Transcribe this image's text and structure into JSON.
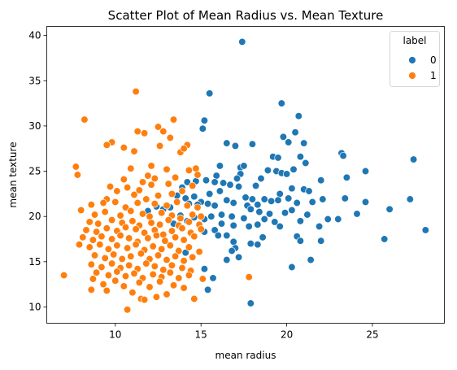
{
  "chart_data": {
    "type": "scatter",
    "title": "Scatter Plot of Mean Radius vs. Mean Texture",
    "xlabel": "mean radius",
    "ylabel": "mean texture",
    "xlim": [
      6.0,
      29.2
    ],
    "ylim": [
      8.2,
      41.0
    ],
    "xticks": [
      10,
      15,
      20,
      25
    ],
    "yticks": [
      10,
      15,
      20,
      25,
      30,
      35,
      40
    ],
    "grid": false,
    "legend": {
      "title": "label",
      "placement": "top-right",
      "entries": [
        {
          "label": "0",
          "color": "#1f77b4"
        },
        {
          "label": "1",
          "color": "#ff7f0e"
        }
      ]
    },
    "series": [
      {
        "label": "0",
        "color": "#1f77b4",
        "points": [
          [
            17.4,
            39.3
          ],
          [
            15.5,
            33.6
          ],
          [
            19.7,
            32.5
          ],
          [
            20.7,
            31.1
          ],
          [
            15.2,
            30.6
          ],
          [
            15.1,
            29.7
          ],
          [
            20.5,
            29.3
          ],
          [
            19.8,
            28.8
          ],
          [
            20.1,
            28.2
          ],
          [
            21.0,
            28.1
          ],
          [
            16.5,
            28.1
          ],
          [
            17.0,
            27.8
          ],
          [
            18.0,
            28.0
          ],
          [
            23.2,
            27.0
          ],
          [
            23.3,
            26.7
          ],
          [
            27.4,
            26.3
          ],
          [
            19.2,
            26.6
          ],
          [
            19.5,
            26.5
          ],
          [
            20.8,
            26.6
          ],
          [
            21.1,
            25.9
          ],
          [
            17.3,
            25.4
          ],
          [
            17.5,
            25.6
          ],
          [
            16.1,
            25.6
          ],
          [
            18.9,
            25.1
          ],
          [
            19.4,
            25.0
          ],
          [
            20.4,
            25.2
          ],
          [
            24.6,
            25.0
          ],
          [
            23.5,
            24.3
          ],
          [
            17.3,
            24.7
          ],
          [
            15.9,
            24.5
          ],
          [
            19.7,
            24.8
          ],
          [
            20.0,
            24.7
          ],
          [
            18.5,
            24.2
          ],
          [
            22.0,
            24.0
          ],
          [
            17.1,
            24.2
          ],
          [
            15.3,
            24.0
          ],
          [
            15.8,
            23.8
          ],
          [
            14.7,
            23.9
          ],
          [
            14.2,
            23.8
          ],
          [
            13.9,
            23.2
          ],
          [
            16.3,
            23.7
          ],
          [
            16.7,
            23.5
          ],
          [
            17.2,
            23.3
          ],
          [
            18.2,
            23.4
          ],
          [
            20.3,
            23.1
          ],
          [
            21.0,
            23.0
          ],
          [
            21.3,
            22.8
          ],
          [
            19.6,
            22.5
          ],
          [
            16.1,
            22.8
          ],
          [
            15.5,
            22.5
          ],
          [
            14.6,
            22.2
          ],
          [
            14.1,
            22.0
          ],
          [
            13.6,
            22.3
          ],
          [
            17.6,
            22.1
          ],
          [
            18.0,
            21.9
          ],
          [
            18.7,
            21.9
          ],
          [
            19.1,
            21.7
          ],
          [
            19.5,
            21.8
          ],
          [
            20.1,
            22.0
          ],
          [
            22.1,
            21.9
          ],
          [
            23.4,
            22.0
          ],
          [
            27.2,
            21.9
          ],
          [
            24.6,
            21.6
          ],
          [
            21.5,
            21.6
          ],
          [
            20.6,
            21.5
          ],
          [
            18.3,
            21.3
          ],
          [
            17.7,
            21.2
          ],
          [
            16.9,
            21.5
          ],
          [
            16.5,
            21.8
          ],
          [
            15.8,
            21.2
          ],
          [
            15.4,
            21.4
          ],
          [
            15.0,
            21.6
          ],
          [
            14.8,
            21.3
          ],
          [
            14.3,
            21.4
          ],
          [
            13.2,
            21.0
          ],
          [
            12.8,
            20.8
          ],
          [
            12.4,
            21.1
          ],
          [
            11.9,
            20.6
          ],
          [
            17.9,
            20.8
          ],
          [
            18.4,
            20.5
          ],
          [
            19.0,
            20.3
          ],
          [
            19.9,
            20.4
          ],
          [
            20.3,
            20.7
          ],
          [
            21.2,
            20.2
          ],
          [
            22.4,
            19.7
          ],
          [
            23.0,
            19.7
          ],
          [
            24.1,
            20.3
          ],
          [
            26.0,
            20.8
          ],
          [
            20.8,
            19.5
          ],
          [
            19.3,
            19.4
          ],
          [
            18.7,
            19.7
          ],
          [
            17.5,
            19.8
          ],
          [
            16.8,
            20.0
          ],
          [
            16.2,
            20.2
          ],
          [
            15.6,
            20.0
          ],
          [
            15.2,
            19.7
          ],
          [
            14.6,
            19.9
          ],
          [
            14.2,
            19.5
          ],
          [
            13.8,
            20.1
          ],
          [
            13.4,
            19.2
          ],
          [
            16.2,
            19.2
          ],
          [
            16.9,
            19.0
          ],
          [
            17.8,
            18.9
          ],
          [
            18.3,
            19.1
          ],
          [
            19.6,
            18.9
          ],
          [
            21.9,
            18.9
          ],
          [
            28.1,
            18.5
          ],
          [
            15.8,
            18.5
          ],
          [
            15.2,
            18.3
          ],
          [
            14.4,
            18.2
          ],
          [
            16.5,
            17.9
          ],
          [
            18.6,
            17.7
          ],
          [
            20.6,
            17.8
          ],
          [
            25.7,
            17.5
          ],
          [
            22.0,
            17.3
          ],
          [
            20.8,
            17.3
          ],
          [
            17.9,
            17.0
          ],
          [
            16.9,
            17.2
          ],
          [
            16.0,
            17.9
          ],
          [
            17.0,
            16.5
          ],
          [
            18.3,
            16.9
          ],
          [
            17.2,
            15.5
          ],
          [
            16.8,
            16.2
          ],
          [
            16.5,
            15.2
          ],
          [
            14.1,
            16.0
          ],
          [
            21.4,
            15.2
          ],
          [
            20.3,
            14.4
          ],
          [
            15.2,
            14.2
          ],
          [
            14.3,
            13.6
          ],
          [
            15.7,
            13.2
          ],
          [
            15.4,
            11.9
          ],
          [
            17.9,
            10.4
          ]
        ]
      },
      {
        "label": "1",
        "color": "#ff7f0e",
        "points": [
          [
            11.2,
            33.8
          ],
          [
            8.2,
            30.7
          ],
          [
            13.4,
            30.7
          ],
          [
            12.5,
            29.9
          ],
          [
            11.3,
            29.4
          ],
          [
            11.7,
            29.2
          ],
          [
            12.8,
            29.4
          ],
          [
            13.2,
            28.7
          ],
          [
            9.8,
            28.2
          ],
          [
            9.5,
            27.9
          ],
          [
            10.5,
            27.6
          ],
          [
            12.6,
            27.8
          ],
          [
            14.2,
            27.9
          ],
          [
            13.8,
            27.1
          ],
          [
            14.0,
            27.5
          ],
          [
            11.1,
            27.2
          ],
          [
            7.7,
            25.5
          ],
          [
            7.8,
            24.6
          ],
          [
            10.9,
            25.3
          ],
          [
            12.1,
            25.6
          ],
          [
            13.0,
            25.2
          ],
          [
            14.3,
            25.1
          ],
          [
            14.7,
            25.3
          ],
          [
            11.9,
            24.5
          ],
          [
            10.5,
            24.1
          ],
          [
            12.3,
            24.2
          ],
          [
            13.5,
            24.3
          ],
          [
            14.8,
            24.6
          ],
          [
            9.7,
            23.3
          ],
          [
            10.7,
            23.2
          ],
          [
            11.6,
            23.8
          ],
          [
            12.1,
            23.5
          ],
          [
            13.1,
            23.6
          ],
          [
            14.5,
            23.4
          ],
          [
            10.1,
            22.8
          ],
          [
            11.1,
            22.4
          ],
          [
            11.4,
            22.9
          ],
          [
            12.5,
            22.3
          ],
          [
            13.3,
            22.5
          ],
          [
            13.9,
            22.8
          ],
          [
            9.5,
            21.9
          ],
          [
            8.6,
            21.3
          ],
          [
            9.3,
            21.5
          ],
          [
            10.0,
            21.6
          ],
          [
            10.6,
            21.0
          ],
          [
            11.3,
            21.5
          ],
          [
            11.8,
            21.9
          ],
          [
            12.3,
            21.4
          ],
          [
            13.0,
            21.2
          ],
          [
            13.6,
            21.6
          ],
          [
            14.2,
            21.2
          ],
          [
            14.8,
            21.0
          ],
          [
            8.0,
            20.7
          ],
          [
            8.8,
            20.2
          ],
          [
            9.4,
            20.5
          ],
          [
            10.3,
            20.1
          ],
          [
            10.9,
            20.6
          ],
          [
            11.6,
            20.3
          ],
          [
            12.0,
            20.0
          ],
          [
            12.7,
            20.4
          ],
          [
            13.3,
            20.1
          ],
          [
            13.8,
            19.8
          ],
          [
            14.5,
            20.2
          ],
          [
            15.0,
            20.0
          ],
          [
            8.5,
            19.4
          ],
          [
            9.0,
            19.2
          ],
          [
            9.8,
            19.6
          ],
          [
            10.4,
            19.3
          ],
          [
            11.0,
            19.5
          ],
          [
            11.4,
            19.0
          ],
          [
            12.1,
            19.3
          ],
          [
            12.6,
            19.1
          ],
          [
            13.1,
            19.6
          ],
          [
            13.7,
            19.0
          ],
          [
            14.3,
            19.4
          ],
          [
            14.9,
            19.1
          ],
          [
            8.3,
            18.5
          ],
          [
            8.9,
            18.3
          ],
          [
            9.5,
            18.7
          ],
          [
            10.1,
            18.4
          ],
          [
            10.6,
            18.8
          ],
          [
            11.2,
            18.6
          ],
          [
            11.7,
            18.2
          ],
          [
            12.3,
            18.5
          ],
          [
            12.8,
            18.0
          ],
          [
            13.3,
            18.4
          ],
          [
            13.9,
            18.7
          ],
          [
            14.4,
            18.2
          ],
          [
            15.0,
            18.6
          ],
          [
            8.1,
            17.7
          ],
          [
            8.7,
            17.4
          ],
          [
            9.2,
            17.8
          ],
          [
            9.8,
            17.5
          ],
          [
            10.3,
            17.9
          ],
          [
            10.8,
            17.6
          ],
          [
            11.3,
            17.2
          ],
          [
            11.9,
            17.6
          ],
          [
            12.4,
            17.9
          ],
          [
            12.9,
            17.3
          ],
          [
            13.5,
            17.7
          ],
          [
            14.0,
            17.4
          ],
          [
            14.6,
            17.8
          ],
          [
            7.9,
            16.9
          ],
          [
            8.5,
            16.6
          ],
          [
            9.1,
            16.9
          ],
          [
            9.6,
            16.4
          ],
          [
            10.1,
            16.8
          ],
          [
            10.7,
            16.5
          ],
          [
            11.2,
            16.9
          ],
          [
            11.7,
            16.3
          ],
          [
            12.2,
            16.7
          ],
          [
            12.7,
            16.4
          ],
          [
            13.2,
            16.8
          ],
          [
            13.7,
            16.2
          ],
          [
            14.3,
            16.6
          ],
          [
            14.9,
            16.1
          ],
          [
            8.8,
            15.7
          ],
          [
            9.4,
            15.4
          ],
          [
            9.9,
            15.8
          ],
          [
            10.4,
            15.3
          ],
          [
            10.9,
            15.6
          ],
          [
            11.5,
            15.9
          ],
          [
            12.0,
            15.3
          ],
          [
            12.5,
            15.7
          ],
          [
            13.0,
            15.2
          ],
          [
            13.5,
            15.6
          ],
          [
            14.0,
            15.1
          ],
          [
            14.5,
            15.5
          ],
          [
            8.6,
            14.7
          ],
          [
            9.2,
            14.4
          ],
          [
            9.8,
            14.8
          ],
          [
            10.3,
            14.3
          ],
          [
            10.8,
            14.6
          ],
          [
            11.3,
            14.2
          ],
          [
            11.8,
            14.8
          ],
          [
            12.3,
            14.5
          ],
          [
            12.8,
            14.1
          ],
          [
            13.3,
            14.6
          ],
          [
            13.9,
            14.3
          ],
          [
            14.4,
            14.0
          ],
          [
            8.9,
            13.8
          ],
          [
            9.6,
            13.5
          ],
          [
            10.1,
            13.9
          ],
          [
            10.6,
            13.4
          ],
          [
            11.1,
            13.7
          ],
          [
            11.6,
            13.2
          ],
          [
            12.2,
            13.6
          ],
          [
            12.7,
            13.3
          ],
          [
            13.2,
            13.8
          ],
          [
            13.7,
            13.2
          ],
          [
            14.3,
            13.5
          ],
          [
            7.0,
            13.5
          ],
          [
            8.7,
            13.1
          ],
          [
            9.3,
            12.5
          ],
          [
            10.0,
            12.9
          ],
          [
            10.5,
            12.3
          ],
          [
            11.4,
            12.7
          ],
          [
            12.0,
            12.2
          ],
          [
            12.6,
            12.8
          ],
          [
            13.4,
            12.4
          ],
          [
            14.0,
            12.1
          ],
          [
            15.1,
            13.1
          ],
          [
            17.8,
            13.3
          ],
          [
            8.6,
            11.9
          ],
          [
            9.5,
            11.8
          ],
          [
            11.0,
            11.6
          ],
          [
            11.5,
            10.9
          ],
          [
            11.7,
            10.8
          ],
          [
            12.4,
            11.1
          ],
          [
            13.0,
            11.4
          ],
          [
            14.6,
            10.9
          ],
          [
            10.7,
            9.7
          ]
        ]
      }
    ]
  }
}
